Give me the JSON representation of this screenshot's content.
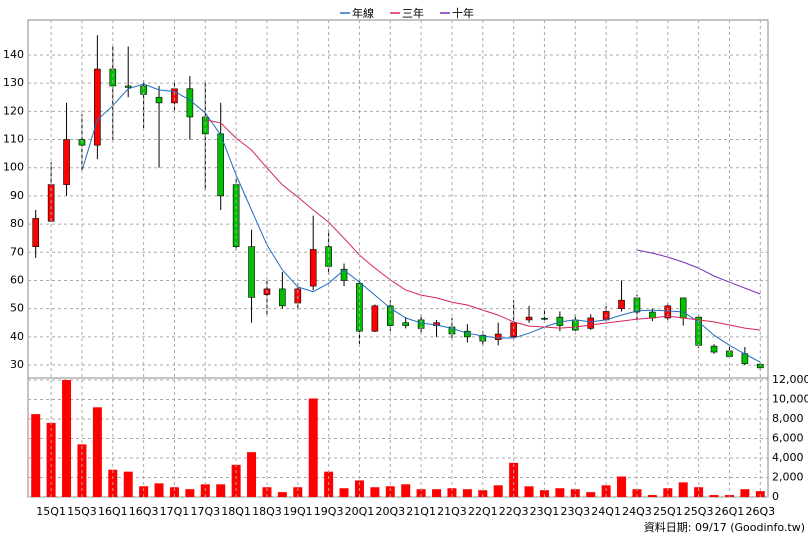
{
  "chart_data": [
    {
      "type": "candlestick",
      "open": [
        72,
        81,
        94,
        110,
        108,
        135,
        129,
        129,
        125,
        123,
        128,
        118,
        112,
        94,
        72,
        55,
        57,
        52,
        58,
        72,
        64,
        59,
        42,
        51,
        45,
        46,
        44,
        43.5,
        42,
        40.6,
        39,
        40,
        46,
        46.6,
        47,
        46,
        43,
        46,
        50,
        53.8,
        48.8,
        46.7,
        53.8,
        47,
        36.7,
        35,
        34,
        30.3
      ],
      "high": [
        85,
        102,
        123,
        119,
        147,
        143,
        143,
        131,
        129,
        130,
        132.5,
        130,
        123,
        96,
        78,
        61,
        63,
        59,
        83,
        78,
        66,
        60,
        51.5,
        53,
        47,
        48,
        46,
        46.7,
        44.5,
        42,
        45,
        53,
        51,
        50,
        49,
        48,
        48,
        51,
        60,
        55,
        50,
        52,
        54,
        48,
        37.4,
        36.7,
        36.4,
        31
      ],
      "low": [
        68,
        81,
        90,
        99,
        103,
        110,
        125,
        114,
        100,
        120,
        110,
        92,
        85,
        70.5,
        45,
        48,
        50,
        50,
        56.6,
        62,
        58,
        37.5,
        41.7,
        42,
        43,
        41,
        40,
        39,
        38,
        37,
        37,
        39,
        45,
        45,
        42,
        42,
        42.5,
        45,
        49,
        46,
        45.6,
        46,
        44,
        36,
        34,
        32.5,
        30,
        28
      ],
      "close": [
        82,
        94,
        110,
        108,
        135,
        129,
        128.5,
        126,
        123,
        128,
        118,
        112,
        90,
        72,
        54,
        57,
        51,
        57,
        71,
        65,
        60,
        42,
        51,
        44,
        44,
        43,
        45,
        41,
        40,
        38.5,
        41,
        45,
        47,
        46.3,
        44,
        42.4,
        46.7,
        49,
        53,
        48.8,
        46.7,
        51,
        46.7,
        37,
        34.6,
        33,
        30.5,
        29
      ],
      "up_color": "#ff0000",
      "down_color": "#00c000",
      "series": [
        {
          "name": "年線",
          "color": "#1f6fbf",
          "values": [
            null,
            null,
            null,
            99,
            117,
            122,
            128,
            129.7,
            127.6,
            127,
            124,
            119.4,
            111.6,
            97.4,
            85,
            72.6,
            63.7,
            57.7,
            56,
            59,
            63.7,
            59.4,
            54.8,
            50.2,
            46.7,
            44.9,
            44.2,
            43,
            41.3,
            40.3,
            39.6,
            39.6,
            41.3,
            43.5,
            45.3,
            46,
            45.3,
            46,
            47.7,
            49.2,
            49.5,
            49.2,
            48.8,
            45.3,
            40.6,
            37,
            33.9,
            31
          ]
        },
        {
          "name": "三年",
          "color": "#d6245a",
          "values": [
            null,
            null,
            null,
            null,
            null,
            null,
            null,
            null,
            null,
            null,
            null,
            117,
            115.9,
            110.5,
            106.3,
            99.9,
            93.9,
            89.6,
            85,
            80.7,
            75,
            69,
            64.4,
            60.2,
            56.6,
            54.8,
            53.8,
            52.3,
            51.3,
            49.5,
            47.7,
            45.3,
            43.8,
            43.5,
            43.1,
            43.5,
            44.2,
            44.9,
            45.6,
            46.3,
            46.7,
            47.4,
            46.7,
            46,
            45.3,
            44.2,
            43.1,
            42.4
          ]
        },
        {
          "name": "十年",
          "color": "#7a2fc0",
          "values": [
            null,
            null,
            null,
            null,
            null,
            null,
            null,
            null,
            null,
            null,
            null,
            null,
            null,
            null,
            null,
            null,
            null,
            null,
            null,
            null,
            null,
            null,
            null,
            null,
            null,
            null,
            null,
            null,
            null,
            null,
            null,
            null,
            null,
            null,
            null,
            null,
            null,
            null,
            null,
            70.8,
            69.7,
            68.3,
            66.5,
            64.4,
            61.6,
            59.4,
            57.3,
            55.2
          ]
        }
      ],
      "ylim": [
        25.4,
        152.4
      ],
      "yticks": [
        30,
        40,
        50,
        60,
        70,
        80,
        90,
        100,
        110,
        120,
        130,
        140
      ],
      "grid": true
    },
    {
      "type": "bar",
      "categories": [
        null,
        "15Q1",
        null,
        "15Q3",
        null,
        "16Q1",
        null,
        "16Q3",
        null,
        "17Q1",
        null,
        "17Q3",
        null,
        "18Q1",
        null,
        "18Q3",
        null,
        "19Q1",
        null,
        "19Q3",
        null,
        "20Q1",
        null,
        "20Q3",
        null,
        "21Q1",
        null,
        "21Q3",
        null,
        "22Q1",
        null,
        "22Q3",
        null,
        "23Q1",
        null,
        "23Q3",
        null,
        "24Q1",
        null,
        "24Q3",
        null,
        "25Q1",
        null,
        "25Q3",
        null,
        "26Q1",
        null,
        "26Q3"
      ],
      "values": [
        8500,
        7600,
        12000,
        5400,
        9200,
        2800,
        2600,
        1100,
        1400,
        1000,
        800,
        1300,
        1300,
        3300,
        4600,
        1000,
        500,
        1000,
        10100,
        2600,
        900,
        1700,
        1000,
        1100,
        1300,
        800,
        800,
        900,
        800,
        700,
        1200,
        3500,
        1100,
        700,
        900,
        800,
        500,
        1200,
        2100,
        800,
        200,
        900,
        1500,
        1000,
        200,
        200,
        800,
        600
      ],
      "color": "#ff0000",
      "ylim": [
        0,
        12000
      ],
      "yticks": [
        0,
        {
          "value": 2000,
          "label": "2,000"
        },
        {
          "value": 4000,
          "label": "4,000"
        },
        {
          "value": 6000,
          "label": "6,000"
        },
        {
          "value": 8000,
          "label": "8,000"
        },
        {
          "value": 10000,
          "label": "10,000"
        },
        {
          "value": 12000,
          "label": "12,000"
        }
      ],
      "grid": true,
      "source": "資料日期: 09/17 (Goodinfo.tw)"
    }
  ]
}
